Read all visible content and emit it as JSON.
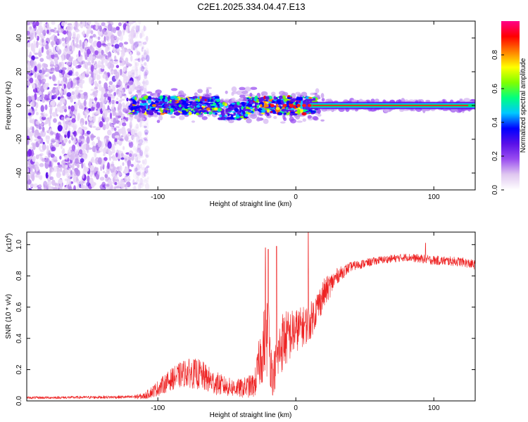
{
  "title": "C2E1.2025.334.04.47.E13",
  "chart_data": [
    {
      "type": "heatmap",
      "xlabel": "Height of straight line (km)",
      "ylabel": "Frequency (Hz)",
      "xlim": [
        -195,
        130
      ],
      "ylim": [
        -50,
        50
      ],
      "xticks": [
        -100,
        0,
        100
      ],
      "xtick_labels": [
        "-100",
        "0",
        "100"
      ],
      "yticks": [
        -40,
        -20,
        0,
        20,
        40
      ],
      "ytick_labels": [
        "-40",
        "-20",
        "0",
        "20",
        "40"
      ],
      "noise_region_x": [
        -195,
        -110
      ],
      "signal_line_frequency": 0,
      "colorbar": {
        "label": "Normalized spectral amplitude",
        "range": [
          0,
          1
        ],
        "ticks": [
          0,
          0.2,
          0.4,
          0.6,
          0.8
        ],
        "tick_labels": [
          "0.0",
          "0.2",
          "0.4",
          "0.6",
          "0.8"
        ],
        "colors": [
          "#ffffff",
          "#e0c8f0",
          "#9a4df0",
          "#5a10e8",
          "#0000ff",
          "#00c8ff",
          "#00ff80",
          "#80ff00",
          "#ffff00",
          "#ff8000",
          "#ff0000",
          "#ff0088"
        ]
      }
    },
    {
      "type": "line",
      "xlabel": "Height of straight line (km)",
      "ylabel": "SNR (10 * v/v)",
      "multiplier_label": "(x10",
      "multiplier_exponent": "4",
      "xlim": [
        -195,
        130
      ],
      "ylim": [
        0,
        1.08
      ],
      "xticks": [
        -100,
        0,
        100
      ],
      "xtick_labels": [
        "-100",
        "0",
        "100"
      ],
      "yticks": [
        0,
        0.2,
        0.4,
        0.6,
        0.8,
        1.0
      ],
      "ytick_labels": [
        "0.0",
        "0.2",
        "0.4",
        "0.6",
        "0.8",
        "1.0"
      ],
      "color": "#ee2222",
      "envelope": {
        "x": [
          -195,
          -120,
          -110,
          -100,
          -90,
          -80,
          -70,
          -60,
          -50,
          -40,
          -30,
          -25,
          -20,
          -17,
          -10,
          0,
          10,
          20,
          30,
          40,
          60,
          80,
          100,
          120,
          130
        ],
        "mean": [
          0.02,
          0.025,
          0.03,
          0.08,
          0.14,
          0.18,
          0.17,
          0.12,
          0.09,
          0.08,
          0.1,
          0.3,
          0.45,
          0.15,
          0.38,
          0.45,
          0.5,
          0.68,
          0.8,
          0.86,
          0.9,
          0.92,
          0.9,
          0.89,
          0.87
        ],
        "spread": [
          0.008,
          0.01,
          0.02,
          0.05,
          0.07,
          0.09,
          0.1,
          0.08,
          0.06,
          0.06,
          0.08,
          0.2,
          0.3,
          0.12,
          0.2,
          0.14,
          0.12,
          0.1,
          0.05,
          0.03,
          0.025,
          0.025,
          0.03,
          0.03,
          0.03
        ]
      },
      "spikes": [
        {
          "x": -22,
          "y": 0.98
        },
        {
          "x": -20,
          "y": 0.97
        },
        {
          "x": -14,
          "y": 0.99
        },
        {
          "x": 9,
          "y": 1.08
        },
        {
          "x": 94,
          "y": 1.01
        }
      ]
    }
  ]
}
